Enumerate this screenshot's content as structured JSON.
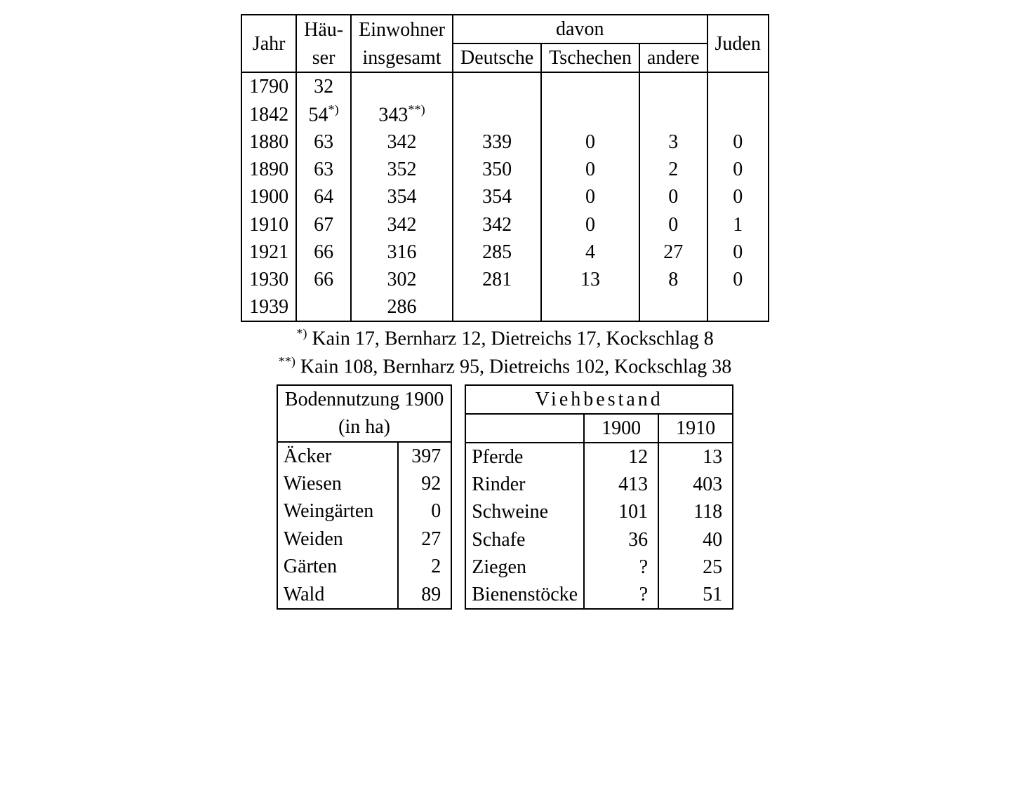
{
  "population": {
    "headers": {
      "jahr": "Jahr",
      "hauser1": "Häu-",
      "hauser2": "ser",
      "einwohner1": "Einwohner",
      "einwohner2": "insgesamt",
      "davon": "davon",
      "deutsche": "Deutsche",
      "tschechen": "Tschechen",
      "andere": "andere",
      "juden": "Juden"
    },
    "rows": [
      {
        "jahr": "1790",
        "hauser": "32",
        "hauser_sup": "",
        "einw": "",
        "einw_sup": "",
        "de": "",
        "cz": "",
        "an": "",
        "ju": ""
      },
      {
        "jahr": "1842",
        "hauser": "54",
        "hauser_sup": "*)",
        "einw": "343",
        "einw_sup": "**)",
        "de": "",
        "cz": "",
        "an": "",
        "ju": ""
      },
      {
        "jahr": "1880",
        "hauser": "63",
        "hauser_sup": "",
        "einw": "342",
        "einw_sup": "",
        "de": "339",
        "cz": "0",
        "an": "3",
        "ju": "0"
      },
      {
        "jahr": "1890",
        "hauser": "63",
        "hauser_sup": "",
        "einw": "352",
        "einw_sup": "",
        "de": "350",
        "cz": "0",
        "an": "2",
        "ju": "0"
      },
      {
        "jahr": "1900",
        "hauser": "64",
        "hauser_sup": "",
        "einw": "354",
        "einw_sup": "",
        "de": "354",
        "cz": "0",
        "an": "0",
        "ju": "0"
      },
      {
        "jahr": "1910",
        "hauser": "67",
        "hauser_sup": "",
        "einw": "342",
        "einw_sup": "",
        "de": "342",
        "cz": "0",
        "an": "0",
        "ju": "1"
      },
      {
        "jahr": "1921",
        "hauser": "66",
        "hauser_sup": "",
        "einw": "316",
        "einw_sup": "",
        "de": "285",
        "cz": "4",
        "an": "27",
        "ju": "0"
      },
      {
        "jahr": "1930",
        "hauser": "66",
        "hauser_sup": "",
        "einw": "302",
        "einw_sup": "",
        "de": "281",
        "cz": "13",
        "an": "8",
        "ju": "0"
      },
      {
        "jahr": "1939",
        "hauser": "",
        "hauser_sup": "",
        "einw": "286",
        "einw_sup": "",
        "de": "",
        "cz": "",
        "an": "",
        "ju": ""
      }
    ]
  },
  "footnotes": {
    "fn1_mark": "*)",
    "fn1_text": " Kain 17, Bernharz 12, Dietreichs 17, Kockschlag 8",
    "fn2_mark": "**)",
    "fn2_text": " Kain 108, Bernharz 95, Dietreichs 102, Kockschlag 38"
  },
  "land": {
    "title1": "Bodennutzung 1900",
    "title2": "(in ha)",
    "rows": [
      {
        "label": "Äcker",
        "value": "397"
      },
      {
        "label": "Wiesen",
        "value": "92"
      },
      {
        "label": "Weingärten",
        "value": "0"
      },
      {
        "label": "Weiden",
        "value": "27"
      },
      {
        "label": "Gärten",
        "value": "2"
      },
      {
        "label": "Wald",
        "value": "89"
      }
    ]
  },
  "livestock": {
    "title": "Viehbestand",
    "year1": "1900",
    "year2": "1910",
    "rows": [
      {
        "label": "Pferde",
        "v1": "12",
        "v2": "13"
      },
      {
        "label": "Rinder",
        "v1": "413",
        "v2": "403"
      },
      {
        "label": "Schweine",
        "v1": "101",
        "v2": "118"
      },
      {
        "label": "Schafe",
        "v1": "36",
        "v2": "40"
      },
      {
        "label": "Ziegen",
        "v1": "?",
        "v2": "25"
      },
      {
        "label": "Bienenstöcke",
        "v1": "?",
        "v2": "51"
      }
    ]
  }
}
